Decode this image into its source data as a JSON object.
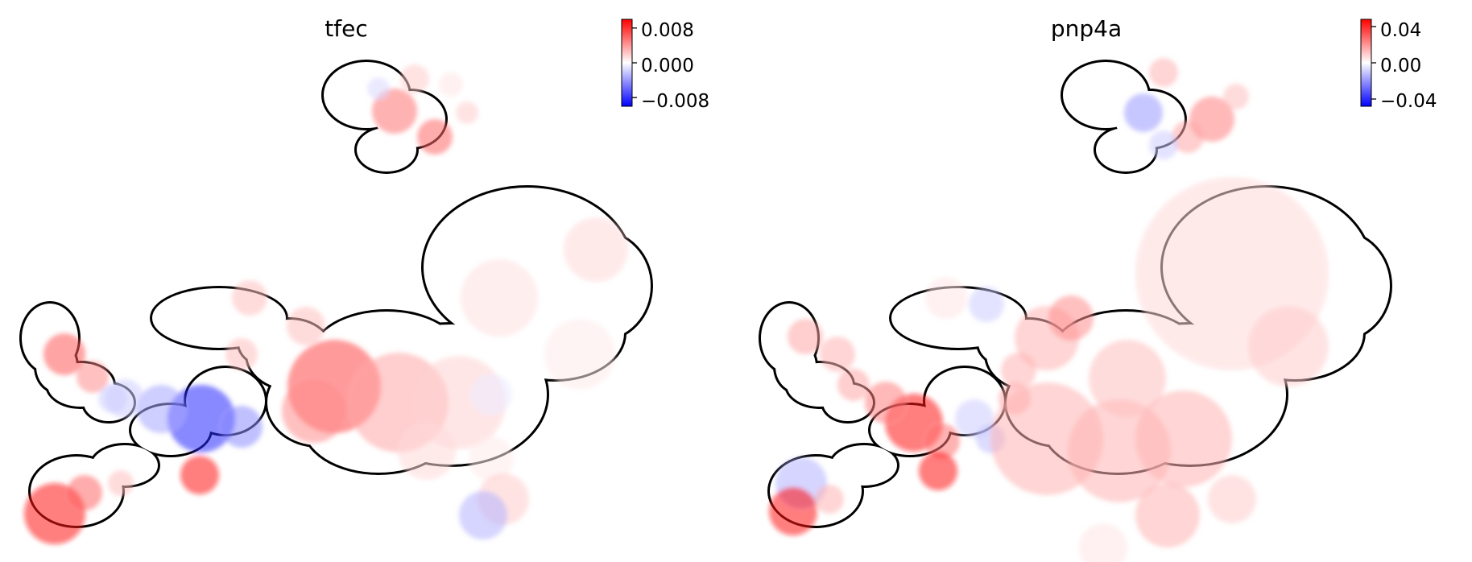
{
  "figure": {
    "colormap": {
      "name": "bwr",
      "low_color": "#0000ff",
      "mid_color": "#ffffff",
      "high_color": "#ff0000",
      "outline_color": "#000000"
    }
  },
  "chart_data": [
    {
      "type": "scatter",
      "title": "tfec",
      "xlabel": "",
      "ylabel": "",
      "grid": false,
      "axes_visible": false,
      "colorbar": {
        "vmin": -0.01,
        "vmax": 0.01,
        "ticks": [
          0.008,
          0.0,
          -0.008
        ],
        "tick_labels": [
          "0.008",
          "0.000",
          "−0.008"
        ]
      }
    },
    {
      "type": "scatter",
      "title": "pnp4a",
      "xlabel": "",
      "ylabel": "",
      "grid": false,
      "axes_visible": false,
      "colorbar": {
        "vmin": -0.048,
        "vmax": 0.048,
        "ticks": [
          0.04,
          0.0,
          -0.04
        ],
        "tick_labels": [
          "0.04",
          "0.00",
          "−0.04"
        ]
      }
    }
  ]
}
